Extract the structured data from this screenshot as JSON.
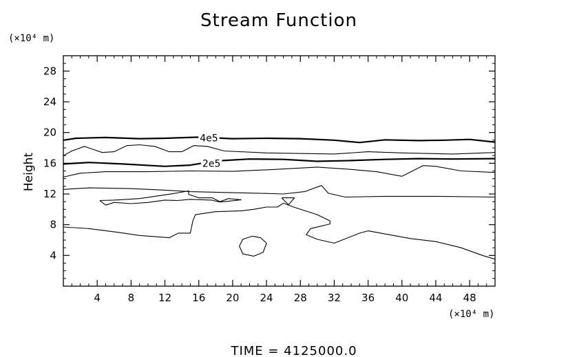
{
  "chart_data": {
    "type": "contour",
    "title": "Stream Function",
    "xlabel": "",
    "ylabel": "Height",
    "x_unit_label": "(×10⁴ m)",
    "y_unit_label": "(×10⁴ m)",
    "xlim": [
      0,
      51
    ],
    "ylim": [
      0,
      30
    ],
    "xticks": [
      4,
      8,
      12,
      16,
      20,
      24,
      28,
      32,
      36,
      40,
      44,
      48
    ],
    "yticks": [
      4,
      8,
      12,
      16,
      20,
      24,
      28
    ],
    "xtick_labels": [
      "4",
      "8",
      "12",
      "16",
      "20",
      "24",
      "28",
      "32",
      "36",
      "40",
      "44",
      "48"
    ],
    "ytick_labels": [
      "4",
      "8",
      "12",
      "16",
      "20",
      "24",
      "28"
    ],
    "grid": false,
    "footer": "TIME  =  4125000.0",
    "contours": [
      {
        "level": "4e5",
        "labeled": true,
        "label_at": [
          17.2,
          19.3
        ],
        "bold": true,
        "points": [
          [
            0,
            19.0
          ],
          [
            1.5,
            19.25
          ],
          [
            5,
            19.35
          ],
          [
            9,
            19.2
          ],
          [
            12,
            19.25
          ],
          [
            16,
            19.4
          ],
          [
            20,
            19.2
          ],
          [
            24,
            19.25
          ],
          [
            28,
            19.2
          ],
          [
            32,
            19.0
          ],
          [
            35,
            18.7
          ],
          [
            38,
            19.05
          ],
          [
            42,
            18.95
          ],
          [
            45,
            19.0
          ],
          [
            48,
            19.1
          ],
          [
            51,
            18.75
          ]
        ]
      },
      {
        "level": "2e5",
        "labeled": true,
        "label_at": [
          17.5,
          16.0
        ],
        "bold": true,
        "points": [
          [
            0,
            15.9
          ],
          [
            3,
            16.1
          ],
          [
            7,
            15.9
          ],
          [
            12,
            15.6
          ],
          [
            15,
            15.75
          ],
          [
            18,
            16.3
          ],
          [
            22,
            16.55
          ],
          [
            26,
            16.5
          ],
          [
            30,
            16.25
          ],
          [
            34,
            16.35
          ],
          [
            38,
            16.5
          ],
          [
            42,
            16.6
          ],
          [
            46,
            16.55
          ],
          [
            51,
            16.6
          ]
        ]
      },
      {
        "level": "",
        "labeled": false,
        "bold": false,
        "points": [
          [
            0,
            17.0
          ],
          [
            1,
            17.6
          ],
          [
            2.5,
            18.2
          ],
          [
            3.8,
            17.7
          ],
          [
            4.6,
            17.4
          ],
          [
            6,
            17.5
          ],
          [
            7.5,
            18.3
          ],
          [
            9,
            18.4
          ],
          [
            10.8,
            18.2
          ],
          [
            12.5,
            17.5
          ],
          [
            14,
            17.5
          ],
          [
            15.4,
            18.3
          ],
          [
            17,
            18.2
          ],
          [
            19,
            17.6
          ],
          [
            24,
            17.35
          ],
          [
            32,
            17.2
          ],
          [
            36,
            17.5
          ],
          [
            40,
            17.35
          ],
          [
            46,
            17.2
          ],
          [
            51,
            17.4
          ]
        ]
      },
      {
        "level": "",
        "labeled": false,
        "bold": false,
        "points": [
          [
            0,
            14.2
          ],
          [
            2,
            14.7
          ],
          [
            5,
            14.9
          ],
          [
            10,
            14.9
          ],
          [
            15,
            15.0
          ],
          [
            20,
            14.95
          ],
          [
            25,
            15.2
          ],
          [
            30,
            15.5
          ],
          [
            34,
            15.2
          ],
          [
            37,
            14.9
          ],
          [
            40,
            14.3
          ],
          [
            42.5,
            15.7
          ],
          [
            44,
            15.6
          ],
          [
            47,
            15.0
          ],
          [
            51,
            14.8
          ]
        ]
      },
      {
        "level": "",
        "labeled": false,
        "bold": false,
        "points": [
          [
            0,
            12.6
          ],
          [
            3,
            12.8
          ],
          [
            8,
            12.7
          ],
          [
            12,
            12.5
          ],
          [
            15,
            12.3
          ],
          [
            19,
            12.2
          ],
          [
            23,
            12.1
          ],
          [
            26,
            12.0
          ],
          [
            28.5,
            12.3
          ],
          [
            30.5,
            13.1
          ],
          [
            31.3,
            12.1
          ],
          [
            33.3,
            11.6
          ],
          [
            38,
            11.7
          ],
          [
            44,
            11.7
          ],
          [
            51,
            11.6
          ]
        ]
      },
      {
        "level": "",
        "labeled": false,
        "bold": false,
        "points": [
          [
            4.3,
            11.15
          ],
          [
            6,
            11.2
          ],
          [
            9,
            11.4
          ],
          [
            11.5,
            11.8
          ],
          [
            13,
            12.05
          ],
          [
            14.8,
            12.4
          ],
          [
            14.8,
            11.95
          ],
          [
            16,
            11.5
          ],
          [
            17.6,
            11.5
          ],
          [
            18.5,
            11.0
          ],
          [
            19.5,
            11.4
          ],
          [
            21,
            11.25
          ],
          [
            19.5,
            11.05
          ],
          [
            18.5,
            10.95
          ],
          [
            17.5,
            11.2
          ],
          [
            15,
            11.3
          ],
          [
            13.5,
            11.15
          ],
          [
            12,
            11.2
          ],
          [
            10,
            10.9
          ],
          [
            8,
            10.75
          ],
          [
            6,
            10.9
          ],
          [
            5,
            10.55
          ],
          [
            4.3,
            11.15
          ]
        ]
      },
      {
        "level": "",
        "labeled": false,
        "bold": false,
        "points": [
          [
            0,
            7.7
          ],
          [
            3,
            7.5
          ],
          [
            6.5,
            7.0
          ],
          [
            9,
            6.6
          ],
          [
            12.5,
            6.3
          ],
          [
            13.6,
            6.9
          ],
          [
            15,
            6.9
          ],
          [
            15.3,
            8.5
          ],
          [
            15.6,
            9.3
          ],
          [
            18,
            9.7
          ],
          [
            21,
            9.8
          ],
          [
            22.5,
            10.0
          ],
          [
            24,
            10.3
          ],
          [
            25.3,
            10.3
          ],
          [
            26,
            10.8
          ],
          [
            27.2,
            10.3
          ],
          [
            30,
            9.3
          ],
          [
            31.5,
            8.5
          ],
          [
            31.5,
            8.1
          ],
          [
            29.2,
            7.5
          ],
          [
            28.7,
            6.7
          ],
          [
            30,
            6.1
          ],
          [
            32,
            5.6
          ],
          [
            35,
            6.9
          ],
          [
            36,
            7.2
          ],
          [
            38,
            6.8
          ],
          [
            41,
            6.2
          ],
          [
            44,
            5.8
          ],
          [
            47,
            5.0
          ],
          [
            49.5,
            4.0
          ],
          [
            51,
            3.5
          ]
        ]
      },
      {
        "level": "",
        "labeled": false,
        "bold": false,
        "closed": true,
        "points": [
          [
            22.3,
            6.5
          ],
          [
            23.3,
            6.3
          ],
          [
            24,
            5.6
          ],
          [
            23.6,
            4.4
          ],
          [
            22.5,
            3.9
          ],
          [
            21.2,
            4.2
          ],
          [
            20.8,
            5.2
          ],
          [
            21.2,
            6.1
          ],
          [
            22.3,
            6.5
          ]
        ]
      },
      {
        "level": "",
        "labeled": false,
        "bold": false,
        "points": [
          [
            25.8,
            11.5
          ],
          [
            27.3,
            11.5
          ],
          [
            26.6,
            10.6
          ],
          [
            25.8,
            11.5
          ]
        ]
      }
    ]
  }
}
